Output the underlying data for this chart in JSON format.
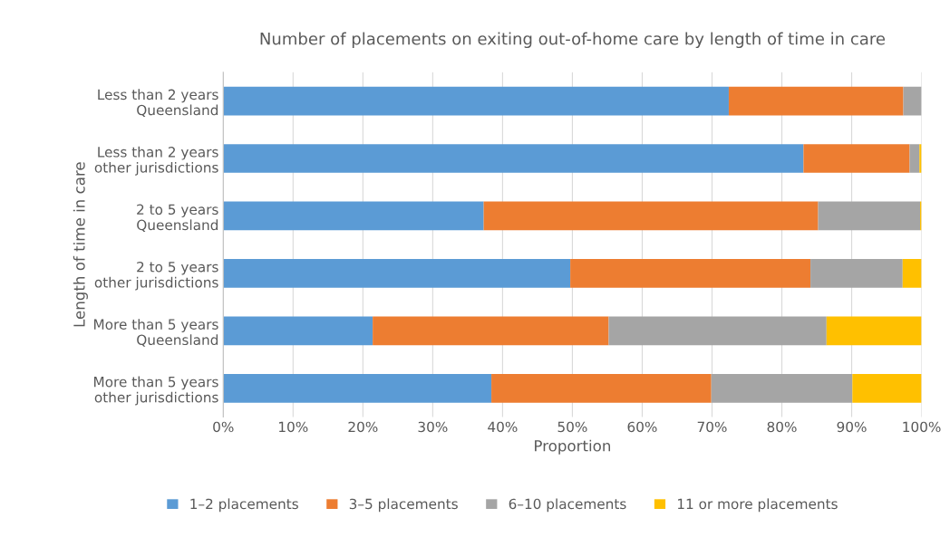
{
  "chart_data": {
    "type": "bar",
    "orientation": "horizontal",
    "stacked": true,
    "title": "Number of placements on exiting out-of-home care by length of time in care",
    "xlabel": "Proportion",
    "ylabel": "Length of time in care",
    "categories": [
      "Less than 2 years\nQueensland",
      "Less than 2 years\nother jurisdictions",
      "2 to 5 years\nQueensland",
      "2 to 5 years\nother jurisdictions",
      "More than 5 years\nQueensland",
      "More than 5 years\nother jurisdictions"
    ],
    "series": [
      {
        "name": "1–2 placements",
        "color": "#5b9bd5",
        "values": [
          72.4,
          83.1,
          37.3,
          49.7,
          21.4,
          38.4
        ]
      },
      {
        "name": "3–5 placements",
        "color": "#ed7d31",
        "values": [
          25.0,
          15.2,
          47.9,
          34.4,
          33.8,
          31.5
        ]
      },
      {
        "name": "6–10 placements",
        "color": "#a5a5a5",
        "values": [
          2.6,
          1.4,
          14.6,
          13.2,
          31.2,
          20.2
        ]
      },
      {
        "name": "11 or more placements",
        "color": "#ffc000",
        "values": [
          0,
          0.3,
          0.2,
          2.7,
          13.6,
          9.9
        ]
      }
    ],
    "xlim": [
      0,
      100
    ],
    "xticks": [
      {
        "value": 0,
        "label": "0%"
      },
      {
        "value": 10,
        "label": "10%"
      },
      {
        "value": 20,
        "label": "20%"
      },
      {
        "value": 30,
        "label": "30%"
      },
      {
        "value": 40,
        "label": "40%"
      },
      {
        "value": 50,
        "label": "50%"
      },
      {
        "value": 60,
        "label": "60%"
      },
      {
        "value": 70,
        "label": "70%"
      },
      {
        "value": 80,
        "label": "80%"
      },
      {
        "value": 90,
        "label": "90%"
      },
      {
        "value": 100,
        "label": "100%"
      }
    ],
    "grid": "x",
    "legend": "bottom"
  }
}
